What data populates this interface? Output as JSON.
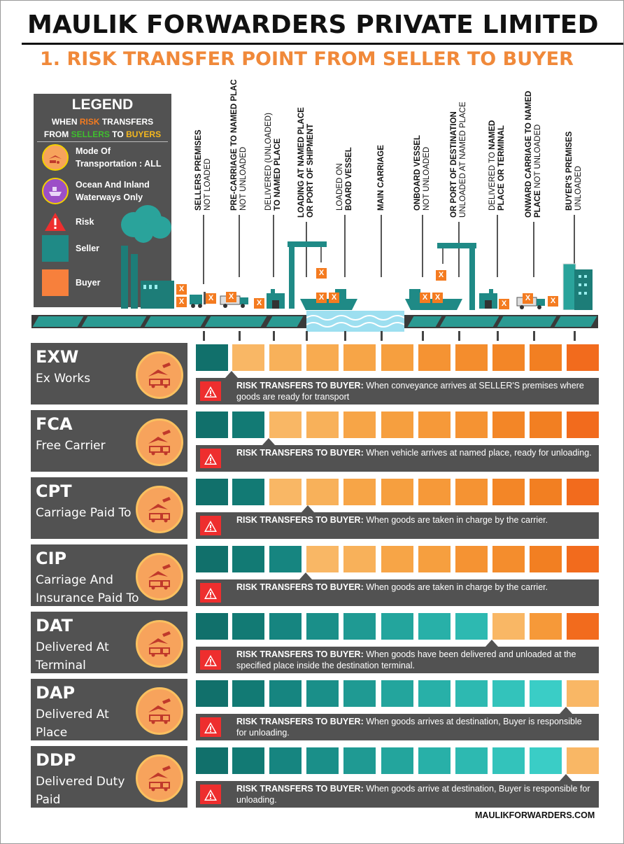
{
  "company": "MAULIK FORWARDERS PRIVATE LIMITED",
  "subtitle": "1. RISK TRANSFER POINT FROM SELLER TO BUYER",
  "legend": {
    "title": "LEGEND",
    "line1_a": "WHEN ",
    "line1_b": "RISK",
    "line1_c": " TRANSFERS",
    "line2_a": "FROM ",
    "line2_b": "SELLERS",
    "line2_c": " TO ",
    "line2_d": "BUYERS",
    "mode_all": "Mode Of Transportation : ALL",
    "mode_ocean": "Ocean And Inland Waterways Only",
    "risk": "Risk",
    "seller": "Seller",
    "buyer": "Buyer"
  },
  "colors": {
    "seller_dark": "#11706b",
    "buyer_dark": "#f26b1d",
    "panel": "#525252",
    "accent": "#f0893a"
  },
  "stages": [
    {
      "bold": "SELLERS PREMISES",
      "normal": "NOT LOADED"
    },
    {
      "bold": "PRE-CARRIAGE TO NAMED PLAC",
      "normal": "NOT UNLOADED"
    },
    {
      "normal": "DELIVERED (UNLOADED)",
      "bold_prefix": "TO ",
      "bold": "NAMED PLACE"
    },
    {
      "bold": "LOADING AT NAMED PLACE",
      "bold2": "OR PORT OF SHIPMENT"
    },
    {
      "normal": "LOADED ON",
      "bold": "BOARD VESSEL"
    },
    {
      "bold": "MAIN CARRIAGE"
    },
    {
      "bold": "ONBOARD VESSEL",
      "normal": "NOT UNLOADED"
    },
    {
      "normal": "UNLOADED AT NAMED PLACE",
      "bold": "OR PORT OF DESTINATION"
    },
    {
      "normal_prefix": "DELIVERED TO ",
      "bold": "NAMED",
      "bold2": "PLACE OR TERMINAL"
    },
    {
      "bold": "ONWARD CARRIAGE TO NAMED",
      "bold2": "PLACE",
      "normal": " NOT UNLOADED"
    },
    {
      "bold": "BUYER'S PREMISES",
      "normal": "UNLOADED"
    }
  ],
  "terms": [
    {
      "code": "EXW",
      "name": "Ex Works",
      "seller_cells": 1,
      "heading": "RISK TRANSFERS TO BUYER:",
      "text": "When conveyance arrives at SELLER'S premises where goods are ready for transport"
    },
    {
      "code": "FCA",
      "name": "Free Carrier",
      "seller_cells": 2,
      "heading": "RISK TRANSFERS TO BUYER:",
      "text": "When vehicle arrives at named place, ready for unloading."
    },
    {
      "code": "CPT",
      "name": "Carriage Paid To",
      "seller_cells": 2,
      "heading": "RISK TRANSFERS TO BUYER:",
      "text": "When goods are taken in charge by the carrier."
    },
    {
      "code": "CIP",
      "name": "Carriage And Insurance Paid To",
      "seller_cells": 3,
      "heading": "RISK TRANSFERS TO BUYER:",
      "text": "When goods are taken in charge by the carrier."
    },
    {
      "code": "DAT",
      "name": "Delivered At Terminal",
      "seller_cells": 8,
      "heading": "RISK TRANSFERS TO BUYER:",
      "text": "When goods have been delivered and unloaded at the specified place inside the destination terminal."
    },
    {
      "code": "DAP",
      "name": "Delivered At Place",
      "seller_cells": 10,
      "heading": "RISK TRANSFERS TO BUYER:",
      "text": "When goods arrives at destination, Buyer is responsible for unloading."
    },
    {
      "code": "DDP",
      "name": "Delivered Duty Paid",
      "seller_cells": 10,
      "heading": "RISK TRANSFERS TO BUYER:",
      "text": "When goods arrive at destination, Buyer is responsible for unloading."
    }
  ],
  "footer": "MAULIKFORWARDERS.COM"
}
